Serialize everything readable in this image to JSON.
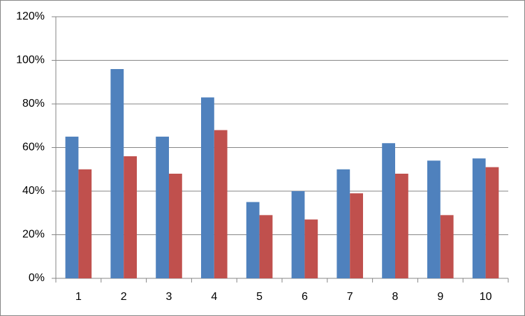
{
  "chart_data": {
    "type": "bar",
    "categories": [
      "1",
      "2",
      "3",
      "4",
      "5",
      "6",
      "7",
      "8",
      "9",
      "10"
    ],
    "series": [
      {
        "color": "#4f81bd",
        "values": [
          65,
          96,
          65,
          83,
          35,
          40,
          50,
          62,
          54,
          55
        ]
      },
      {
        "color": "#c0504d",
        "values": [
          50,
          56,
          48,
          68,
          29,
          27,
          39,
          48,
          29,
          51
        ]
      }
    ],
    "ylim": [
      0,
      120
    ],
    "yticks": [
      {
        "value": 0,
        "label": "0%"
      },
      {
        "value": 20,
        "label": "20%"
      },
      {
        "value": 40,
        "label": "40%"
      },
      {
        "value": 60,
        "label": "60%"
      },
      {
        "value": 80,
        "label": "80%"
      },
      {
        "value": 100,
        "label": "100%"
      },
      {
        "value": 120,
        "label": "120%"
      }
    ],
    "grid": true
  }
}
